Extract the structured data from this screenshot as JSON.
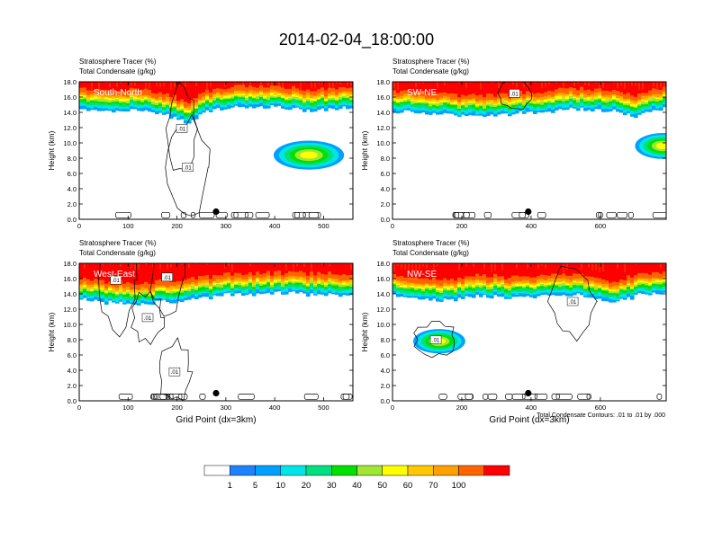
{
  "title": "2014-02-04_18:00:00",
  "colors": {
    "levels": [
      "#ffffff",
      "#1e82ff",
      "#00a0ff",
      "#00e6e6",
      "#00e080",
      "#00e000",
      "#a0e632",
      "#ffff00",
      "#ffc800",
      "#ffa000",
      "#ff6400",
      "#ff0000"
    ],
    "contour": "#000000",
    "background": "#ffffff"
  },
  "colorbar": {
    "labels": [
      "1",
      "5",
      "10",
      "20",
      "30",
      "40",
      "50",
      "60",
      "70",
      "100"
    ]
  },
  "contour_note": "Total Condensate Contours: .01 to .01 by .000",
  "chart_data": [
    {
      "type": "heatmap",
      "id": "south-north",
      "panel_label": "South-North",
      "header_line1": "Stratosphere Tracer   (%)",
      "header_line2": "Total Condensate   (g/kg)",
      "ylabel": "Height (km)",
      "xlabel": "",
      "xlim": [
        0,
        560
      ],
      "ylim": [
        0,
        18
      ],
      "xticks": [
        0,
        100,
        200,
        300,
        400,
        500
      ],
      "yticks": [
        "0.0",
        "2.0",
        "4.0",
        "6.0",
        "8.0",
        "10.0",
        "12.0",
        "14.0",
        "16.0",
        "18.0"
      ],
      "tropopause_km": [
        [
          0,
          15.0
        ],
        [
          60,
          14.7
        ],
        [
          120,
          14.9
        ],
        [
          180,
          14.3
        ],
        [
          220,
          13.3
        ],
        [
          260,
          14.7
        ],
        [
          320,
          15.3
        ],
        [
          400,
          15.2
        ],
        [
          480,
          14.9
        ],
        [
          560,
          15.1
        ]
      ],
      "blob": {
        "x": 470,
        "y": 8.4,
        "rx": 72,
        "ry": 1.9,
        "peak": 40
      },
      "contour_labels": [
        {
          "text": ".01",
          "x": 210,
          "y": 11.9
        },
        {
          "text": ".01",
          "x": 222,
          "y": 6.8
        }
      ],
      "marker": {
        "x": 280,
        "y": 1.0
      }
    },
    {
      "type": "heatmap",
      "id": "sw-ne",
      "panel_label": "SW-NE",
      "header_line1": "Stratosphere Tracer   (%)",
      "header_line2": "Total Condensate   (g/kg)",
      "ylabel": "Height (km)",
      "xlabel": "",
      "xlim": [
        0,
        790
      ],
      "ylim": [
        0,
        18
      ],
      "xticks": [
        0,
        200,
        400,
        600
      ],
      "yticks": [
        "0.0",
        "2.0",
        "4.0",
        "6.0",
        "8.0",
        "10.0",
        "12.0",
        "14.0",
        "16.0",
        "18.0"
      ],
      "tropopause_km": [
        [
          0,
          14.8
        ],
        [
          100,
          14.5
        ],
        [
          200,
          14.2
        ],
        [
          300,
          14.1
        ],
        [
          340,
          14.4
        ],
        [
          420,
          14.6
        ],
        [
          520,
          15.1
        ],
        [
          620,
          14.9
        ],
        [
          700,
          14.2
        ],
        [
          790,
          15.2
        ]
      ],
      "blob": {
        "x": 780,
        "y": 9.6,
        "rx": 80,
        "ry": 1.7,
        "peak": 40
      },
      "contour_labels": [
        {
          "text": ".01",
          "x": 352,
          "y": 16.5
        }
      ],
      "marker": {
        "x": 392,
        "y": 1.0
      }
    },
    {
      "type": "heatmap",
      "id": "west-east",
      "panel_label": "West-East",
      "header_line1": "Stratosphere Tracer   (%)",
      "header_line2": "Total Condensate   (g/kg)",
      "ylabel": "Height (km)",
      "xlabel": "Grid Point (dx=3km)",
      "xlim": [
        0,
        560
      ],
      "ylim": [
        0,
        18
      ],
      "xticks": [
        0,
        100,
        200,
        300,
        400,
        500
      ],
      "yticks": [
        "0.0",
        "2.0",
        "4.0",
        "6.0",
        "8.0",
        "10.0",
        "12.0",
        "14.0",
        "16.0",
        "18.0"
      ],
      "tropopause_km": [
        [
          0,
          13.8
        ],
        [
          60,
          13.5
        ],
        [
          120,
          13.1
        ],
        [
          180,
          13.6
        ],
        [
          240,
          13.9
        ],
        [
          300,
          14.4
        ],
        [
          380,
          14.6
        ],
        [
          460,
          14.6
        ],
        [
          560,
          14.4
        ]
      ],
      "blob": null,
      "contour_labels": [
        {
          "text": ".01",
          "x": 75,
          "y": 15.8
        },
        {
          "text": ".01",
          "x": 180,
          "y": 16.2
        },
        {
          "text": ".01",
          "x": 140,
          "y": 10.9
        },
        {
          "text": ".01",
          "x": 195,
          "y": 3.8
        }
      ],
      "marker": {
        "x": 280,
        "y": 1.0
      }
    },
    {
      "type": "heatmap",
      "id": "nw-se",
      "panel_label": "NW-SE",
      "header_line1": "Stratosphere Tracer   (%)",
      "header_line2": "Total Condensate   (g/kg)",
      "ylabel": "Height (km)",
      "xlabel": "Grid Point (dx=3km)",
      "xlim": [
        0,
        790
      ],
      "ylim": [
        0,
        18
      ],
      "xticks": [
        0,
        200,
        400,
        600
      ],
      "yticks": [
        "0.0",
        "2.0",
        "4.0",
        "6.0",
        "8.0",
        "10.0",
        "12.0",
        "14.0",
        "16.0",
        "18.0"
      ],
      "tropopause_km": [
        [
          0,
          14.4
        ],
        [
          100,
          14.0
        ],
        [
          160,
          13.7
        ],
        [
          240,
          14.3
        ],
        [
          340,
          14.1
        ],
        [
          460,
          14.4
        ],
        [
          560,
          14.3
        ],
        [
          640,
          13.5
        ],
        [
          720,
          14.5
        ],
        [
          790,
          14.9
        ]
      ],
      "blob": {
        "x": 135,
        "y": 7.8,
        "rx": 75,
        "ry": 1.6,
        "peak": 40
      },
      "contour_labels": [
        {
          "text": ".01",
          "x": 125,
          "y": 8.0
        },
        {
          "text": ".01",
          "x": 520,
          "y": 13.0
        }
      ],
      "marker": {
        "x": 392,
        "y": 1.0
      }
    }
  ]
}
